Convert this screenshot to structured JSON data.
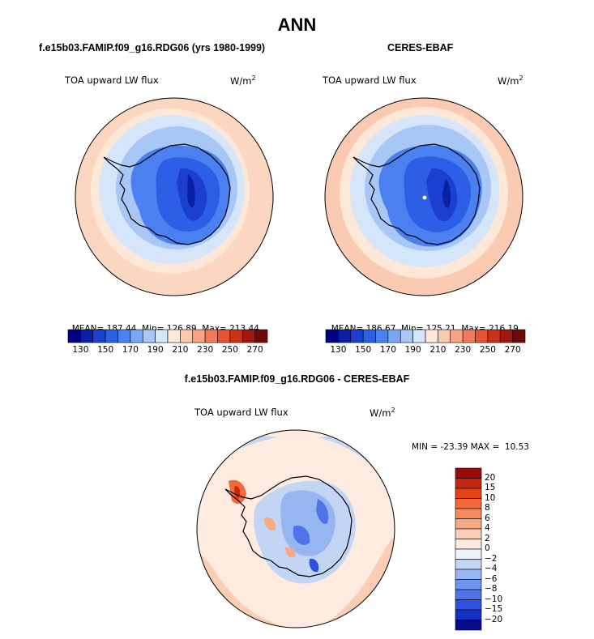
{
  "title": "ANN",
  "panels": [
    {
      "name": "model",
      "title": "f.e15b03.FAMIP.f09_g16.RDG06 (yrs 1980-1999)",
      "variable": "TOA upward LW flux",
      "units": "W/m",
      "units_sup": "2",
      "stats": {
        "mean_label": "MEAN=",
        "mean": "187.44",
        "min_label": "Min=",
        "min": "126.89",
        "max_label": "Max=",
        "max": "213.44"
      }
    },
    {
      "name": "obs",
      "title": "CERES-EBAF",
      "variable": "TOA upward LW flux",
      "units": "W/m",
      "units_sup": "2",
      "stats": {
        "mean_label": "MEAN=",
        "mean": "186.67",
        "min_label": "Min=",
        "min": "125.21",
        "max_label": "Max=",
        "max": "216.19"
      }
    }
  ],
  "colorbar_top": {
    "colors": [
      "#00007f",
      "#0a1fa8",
      "#1b3fd0",
      "#2d5fe6",
      "#4a80ef",
      "#7aa7f2",
      "#a9c7f6",
      "#d6e6fa",
      "#fde8d8",
      "#fbcab2",
      "#f7a586",
      "#f27a59",
      "#e65432",
      "#c8321a",
      "#a01812",
      "#700808"
    ],
    "tick_labels": [
      "130",
      "150",
      "170",
      "190",
      "210",
      "230",
      "250",
      "270"
    ]
  },
  "difference": {
    "title": "f.e15b03.FAMIP.f09_g16.RDG06 - CERES-EBAF",
    "variable": "TOA upward LW flux",
    "units": "W/m",
    "units_sup": "2",
    "min_max": "MIN = -23.39 MAX =  10.53",
    "colorbar": {
      "colors": [
        "#9a0a08",
        "#c8260f",
        "#e34416",
        "#f26a3a",
        "#f58a5e",
        "#f8aa86",
        "#fbcdb5",
        "#fdebe0",
        "#eef2fb",
        "#c3d5f5",
        "#96b6f2",
        "#6f94ee",
        "#4f74ea",
        "#2f50e2",
        "#1630c6",
        "#040a8a"
      ],
      "labels": [
        "20",
        "15",
        "10",
        "8",
        "6",
        "4",
        "2",
        "0",
        "−2",
        "−4",
        "−6",
        "−8",
        "−10",
        "−15",
        "−20"
      ]
    }
  }
}
